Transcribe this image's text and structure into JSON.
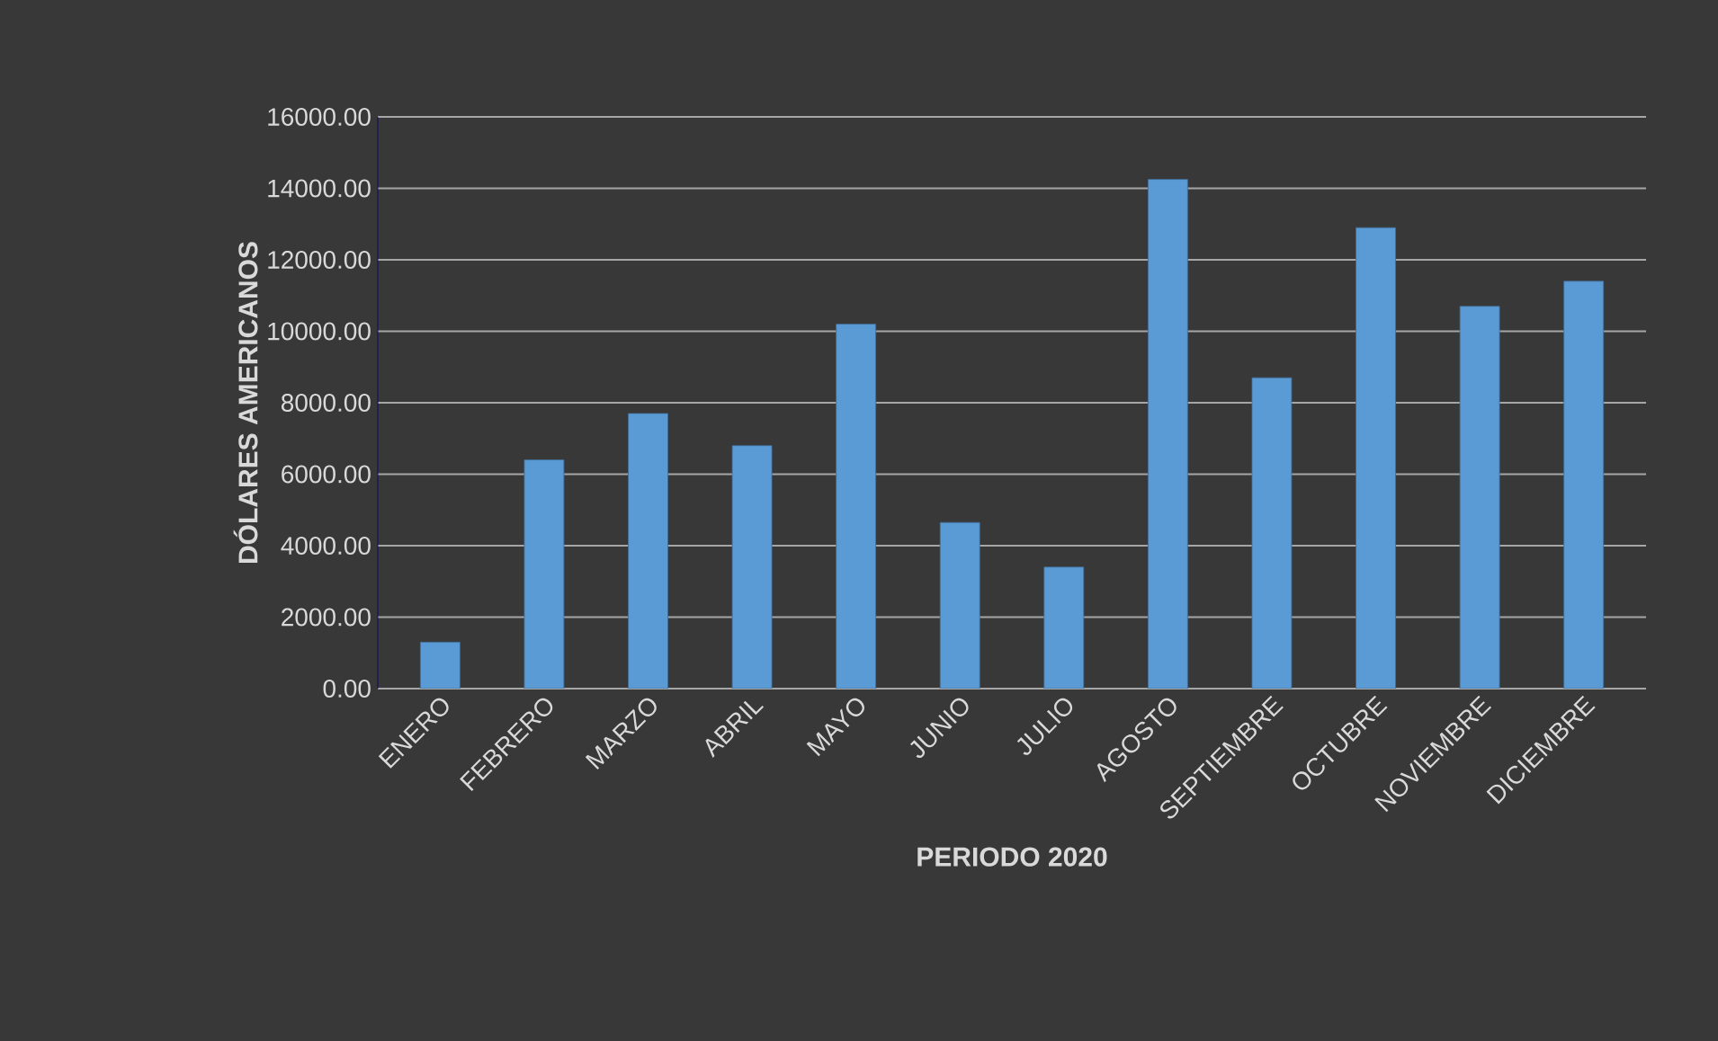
{
  "chart_data": {
    "type": "bar",
    "xlabel": "PERIODO 2020",
    "ylabel": "DÓLARES AMERICANOS",
    "categories": [
      "ENERO",
      "FEBRERO",
      "MARZO",
      "ABRIL",
      "MAYO",
      "JUNIO",
      "JULIO",
      "AGOSTO",
      "SEPTIEMBRE",
      "OCTUBRE",
      "NOVIEMBRE",
      "DICIEMBRE"
    ],
    "values": [
      1300,
      6400,
      7700,
      6800,
      10200,
      4650,
      3400,
      14250,
      8700,
      12900,
      10700,
      11400
    ],
    "color": "#5b9bd5",
    "ylim": [
      0,
      16000
    ],
    "yticks": [
      {
        "value": 0,
        "label": "0.00"
      },
      {
        "value": 2000,
        "label": "2000.00"
      },
      {
        "value": 4000,
        "label": "4000.00"
      },
      {
        "value": 6000,
        "label": "6000.00"
      },
      {
        "value": 8000,
        "label": "8000.00"
      },
      {
        "value": 10000,
        "label": "10000.00"
      },
      {
        "value": 12000,
        "label": "12000.00"
      },
      {
        "value": 14000,
        "label": "14000.00"
      },
      {
        "value": 16000,
        "label": "16000.00"
      }
    ],
    "grid": "y"
  }
}
